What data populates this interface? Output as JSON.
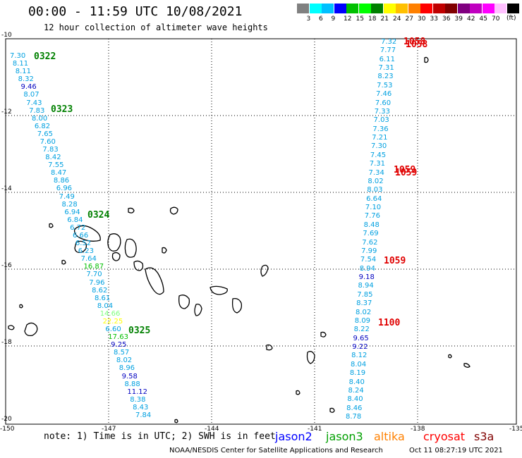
{
  "header": {
    "title": "00:00 - 11:59 UTC 10/08/2021",
    "subtitle": "12 hour collection of altimeter wave heights"
  },
  "legend": {
    "unit": "(ft)",
    "colors": [
      "#808080",
      "#00ffff",
      "#00c0ff",
      "#0000ff",
      "#00c000",
      "#00ff00",
      "#008000",
      "#ffff00",
      "#ffc000",
      "#ff8000",
      "#ff0000",
      "#c00000",
      "#800000",
      "#800080",
      "#c000c0",
      "#ff00ff",
      "#ffc0ff",
      "#000000"
    ],
    "labels": [
      "3",
      "6",
      "9",
      "12",
      "15",
      "18",
      "21",
      "24",
      "27",
      "30",
      "33",
      "36",
      "39",
      "42",
      "45",
      "70"
    ]
  },
  "axes": {
    "lon_labels": [
      "-150",
      "-147",
      "-144",
      "-141",
      "-138",
      "-135"
    ],
    "lat_labels": [
      "-10",
      "-12",
      "-14",
      "-16",
      "-18",
      "-20"
    ]
  },
  "tracks": {
    "left": {
      "color": "#00a0e0",
      "values": [
        {
          "v": "7.30",
          "c": "#00a0e0"
        },
        {
          "v": "8.11",
          "c": "#00a0e0"
        },
        {
          "v": "8.11",
          "c": "#00a0e0"
        },
        {
          "v": "8.32",
          "c": "#00a0e0"
        },
        {
          "v": "9.46",
          "c": "#0000c0"
        },
        {
          "v": "8.07",
          "c": "#00a0e0"
        },
        {
          "v": "7.43",
          "c": "#00a0e0"
        },
        {
          "v": "7.83",
          "c": "#00a0e0"
        },
        {
          "v": "8.00",
          "c": "#00a0e0"
        },
        {
          "v": "6.82",
          "c": "#00a0e0"
        },
        {
          "v": "7.65",
          "c": "#00a0e0"
        },
        {
          "v": "7.60",
          "c": "#00a0e0"
        },
        {
          "v": "7.83",
          "c": "#00a0e0"
        },
        {
          "v": "8.42",
          "c": "#00a0e0"
        },
        {
          "v": "7.55",
          "c": "#00a0e0"
        },
        {
          "v": "8.47",
          "c": "#00a0e0"
        },
        {
          "v": "8.86",
          "c": "#00a0e0"
        },
        {
          "v": "6.96",
          "c": "#00a0e0"
        },
        {
          "v": "7.49",
          "c": "#00a0e0"
        },
        {
          "v": "8.28",
          "c": "#00a0e0"
        },
        {
          "v": "6.94",
          "c": "#00a0e0"
        },
        {
          "v": "6.84",
          "c": "#00a0e0"
        },
        {
          "v": "6.72",
          "c": "#00a0e0"
        },
        {
          "v": "6.66",
          "c": "#00a0e0"
        },
        {
          "v": "6.52",
          "c": "#00a0e0"
        },
        {
          "v": "6.23",
          "c": "#00a0e0"
        },
        {
          "v": "7.64",
          "c": "#00a0e0"
        },
        {
          "v": "16.87",
          "c": "#00c000"
        },
        {
          "v": "7.70",
          "c": "#00a0e0"
        },
        {
          "v": "7.96",
          "c": "#00a0e0"
        },
        {
          "v": "8.62",
          "c": "#00a0e0"
        },
        {
          "v": "8.61",
          "c": "#00a0e0"
        },
        {
          "v": "8.04",
          "c": "#00a0e0"
        },
        {
          "v": "14.66",
          "c": "#7cff7c"
        },
        {
          "v": "22.25",
          "c": "#ffff00"
        },
        {
          "v": "6.60",
          "c": "#00a0e0"
        },
        {
          "v": "17.63",
          "c": "#00c000"
        },
        {
          "v": "9.25",
          "c": "#0000c0"
        },
        {
          "v": "8.57",
          "c": "#00a0e0"
        },
        {
          "v": "8.02",
          "c": "#00a0e0"
        },
        {
          "v": "8.96",
          "c": "#00a0e0"
        },
        {
          "v": "9.58",
          "c": "#0000c0"
        },
        {
          "v": "8.88",
          "c": "#00a0e0"
        },
        {
          "v": "11.12",
          "c": "#0000c0"
        },
        {
          "v": "8.38",
          "c": "#00a0e0"
        },
        {
          "v": "8.43",
          "c": "#00a0e0"
        },
        {
          "v": "7.84",
          "c": "#00a0e0"
        }
      ],
      "times": [
        "0322",
        "0323",
        "0324",
        "0325"
      ]
    },
    "right": {
      "values": [
        {
          "v": "7.32",
          "c": "#00a0e0"
        },
        {
          "v": "7.77",
          "c": "#00a0e0"
        },
        {
          "v": "6.11",
          "c": "#00a0e0"
        },
        {
          "v": "7.31",
          "c": "#00a0e0"
        },
        {
          "v": "8.23",
          "c": "#00a0e0"
        },
        {
          "v": "7.53",
          "c": "#00a0e0"
        },
        {
          "v": "7.46",
          "c": "#00a0e0"
        },
        {
          "v": "7.60",
          "c": "#00a0e0"
        },
        {
          "v": "7.33",
          "c": "#00a0e0"
        },
        {
          "v": "7.03",
          "c": "#00a0e0"
        },
        {
          "v": "7.36",
          "c": "#00a0e0"
        },
        {
          "v": "7.21",
          "c": "#00a0e0"
        },
        {
          "v": "7.30",
          "c": "#00a0e0"
        },
        {
          "v": "7.45",
          "c": "#00a0e0"
        },
        {
          "v": "7.31",
          "c": "#00a0e0"
        },
        {
          "v": "7.34",
          "c": "#00a0e0"
        },
        {
          "v": "8.02",
          "c": "#00a0e0"
        },
        {
          "v": "8.03",
          "c": "#00a0e0"
        },
        {
          "v": "6.64",
          "c": "#00a0e0"
        },
        {
          "v": "7.10",
          "c": "#00a0e0"
        },
        {
          "v": "7.76",
          "c": "#00a0e0"
        },
        {
          "v": "8.48",
          "c": "#00a0e0"
        },
        {
          "v": "7.69",
          "c": "#00a0e0"
        },
        {
          "v": "7.62",
          "c": "#00a0e0"
        },
        {
          "v": "7.99",
          "c": "#00a0e0"
        },
        {
          "v": "7.54",
          "c": "#00a0e0"
        },
        {
          "v": "8.94",
          "c": "#00a0e0"
        },
        {
          "v": "9.18",
          "c": "#0000c0"
        },
        {
          "v": "8.94",
          "c": "#00a0e0"
        },
        {
          "v": "7.85",
          "c": "#00a0e0"
        },
        {
          "v": "8.37",
          "c": "#00a0e0"
        },
        {
          "v": "8.02",
          "c": "#00a0e0"
        },
        {
          "v": "8.09",
          "c": "#00a0e0"
        },
        {
          "v": "8.22",
          "c": "#00a0e0"
        },
        {
          "v": "9.65",
          "c": "#0000c0"
        },
        {
          "v": "9.22",
          "c": "#0000c0"
        },
        {
          "v": "8.12",
          "c": "#00a0e0"
        },
        {
          "v": "8.04",
          "c": "#00a0e0"
        },
        {
          "v": "8.19",
          "c": "#00a0e0"
        },
        {
          "v": "8.40",
          "c": "#00a0e0"
        },
        {
          "v": "8.24",
          "c": "#00a0e0"
        },
        {
          "v": "8.40",
          "c": "#00a0e0"
        },
        {
          "v": "8.46",
          "c": "#00a0e0"
        },
        {
          "v": "8.78",
          "c": "#00a0e0"
        }
      ],
      "times": [
        "1058",
        "1058",
        "1059",
        "1059",
        "1059",
        "1100"
      ]
    }
  },
  "footer": {
    "note": "note: 1) Time is in UTC; 2) SWH is in feet",
    "satellites": [
      {
        "name": "jason2",
        "color": "#0000ff"
      },
      {
        "name": "jason3",
        "color": "#00a000"
      },
      {
        "name": "altika",
        "color": "#ff8000"
      },
      {
        "name": "cryosat",
        "color": "#ff0000"
      },
      {
        "name": "s3a",
        "color": "#800000"
      }
    ],
    "credit": "NOAA/NESDIS Center for Satellite Applications and Research",
    "stamp": "Oct 11 08:27:19 UTC 2021"
  }
}
